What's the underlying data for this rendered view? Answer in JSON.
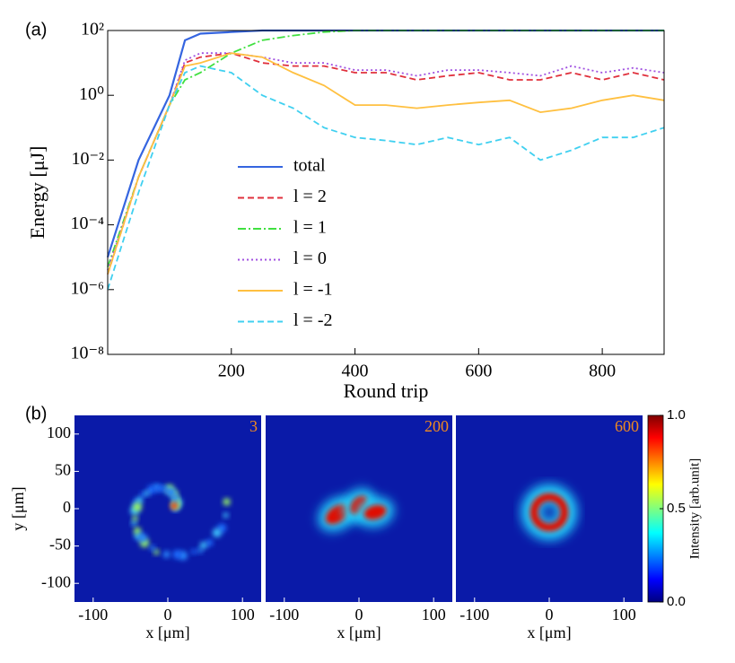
{
  "chart_data": [
    {
      "type": "line",
      "panel_label": "(a)",
      "x_label": "Round trip",
      "y_label": "Energy [μJ]",
      "log_y": true,
      "legend": "center left",
      "xlim": [
        0,
        900
      ],
      "ylim": [
        1e-08,
        100
      ],
      "xticks": [
        200,
        400,
        600,
        800
      ],
      "yticks": [
        {
          "value": 1e-08,
          "label": "10⁻⁸"
        },
        {
          "value": 1e-06,
          "label": "10⁻⁶"
        },
        {
          "value": 0.0001,
          "label": "10⁻⁴"
        },
        {
          "value": 0.01,
          "label": "10⁻²"
        },
        {
          "value": 1,
          "label": "10⁰"
        },
        {
          "value": 100,
          "label": "10²"
        }
      ],
      "x": [
        0,
        50,
        100,
        125,
        150,
        200,
        250,
        300,
        350,
        400,
        450,
        500,
        550,
        600,
        650,
        700,
        750,
        800,
        850,
        900
      ],
      "series": [
        {
          "name": "total",
          "color": "#3565e0",
          "style": "solid",
          "values": [
            1e-05,
            0.01,
            1,
            50,
            80,
            90,
            100,
            100,
            100,
            100,
            100,
            100,
            100,
            100,
            100,
            100,
            100,
            100,
            100,
            100
          ]
        },
        {
          "name": "l = 2",
          "color": "#e0303c",
          "style": "dashed",
          "values": [
            3e-06,
            0.003,
            0.5,
            10,
            15,
            20,
            10,
            8,
            8,
            5,
            5,
            3,
            4,
            5,
            3,
            3,
            5,
            3,
            5,
            3
          ]
        },
        {
          "name": "l = 1",
          "color": "#40e040",
          "style": "dashdot",
          "values": [
            5e-06,
            0.003,
            0.5,
            3,
            5,
            20,
            50,
            70,
            90,
            100,
            100,
            100,
            100,
            100,
            100,
            100,
            100,
            100,
            100,
            100
          ]
        },
        {
          "name": "l = 0",
          "color": "#a050e0",
          "style": "dotted",
          "values": [
            4e-06,
            0.003,
            0.5,
            12,
            20,
            20,
            15,
            10,
            10,
            6,
            6,
            4,
            6,
            6,
            5,
            4,
            8,
            5,
            7,
            5
          ]
        },
        {
          "name": "l = -1",
          "color": "#ffc040",
          "style": "solid",
          "values": [
            3e-06,
            0.003,
            0.5,
            8,
            10,
            20,
            15,
            5,
            2,
            0.5,
            0.5,
            0.4,
            0.5,
            0.6,
            0.7,
            0.3,
            0.4,
            0.7,
            1,
            0.7
          ]
        },
        {
          "name": "l = -2",
          "color": "#40d0f0",
          "style": "dashed",
          "values": [
            1e-06,
            0.001,
            0.5,
            5,
            8,
            5,
            1,
            0.4,
            0.1,
            0.05,
            0.04,
            0.03,
            0.05,
            0.03,
            0.05,
            0.01,
            0.02,
            0.05,
            0.05,
            0.1
          ]
        }
      ]
    },
    {
      "type": "heatmap",
      "panel_label": "(b)",
      "y_label": "y [μm]",
      "xlim": [
        -125,
        125
      ],
      "ylim": [
        -125,
        125
      ],
      "xticks": [
        -100,
        0,
        100
      ],
      "yticks": [
        100,
        50,
        0,
        -50,
        -100
      ],
      "panels": [
        {
          "label": "3",
          "x_label": "x [μm]"
        },
        {
          "label": "200",
          "x_label": "x [μm]"
        },
        {
          "label": "600",
          "x_label": "x [μm]"
        }
      ],
      "colorbar": {
        "label": "Intensity [arb.unit]",
        "lim": [
          0,
          1
        ],
        "ticks": [
          {
            "value": 0,
            "label": "0.0"
          },
          0.5,
          {
            "value": 1,
            "label": "1.0"
          }
        ]
      }
    }
  ]
}
